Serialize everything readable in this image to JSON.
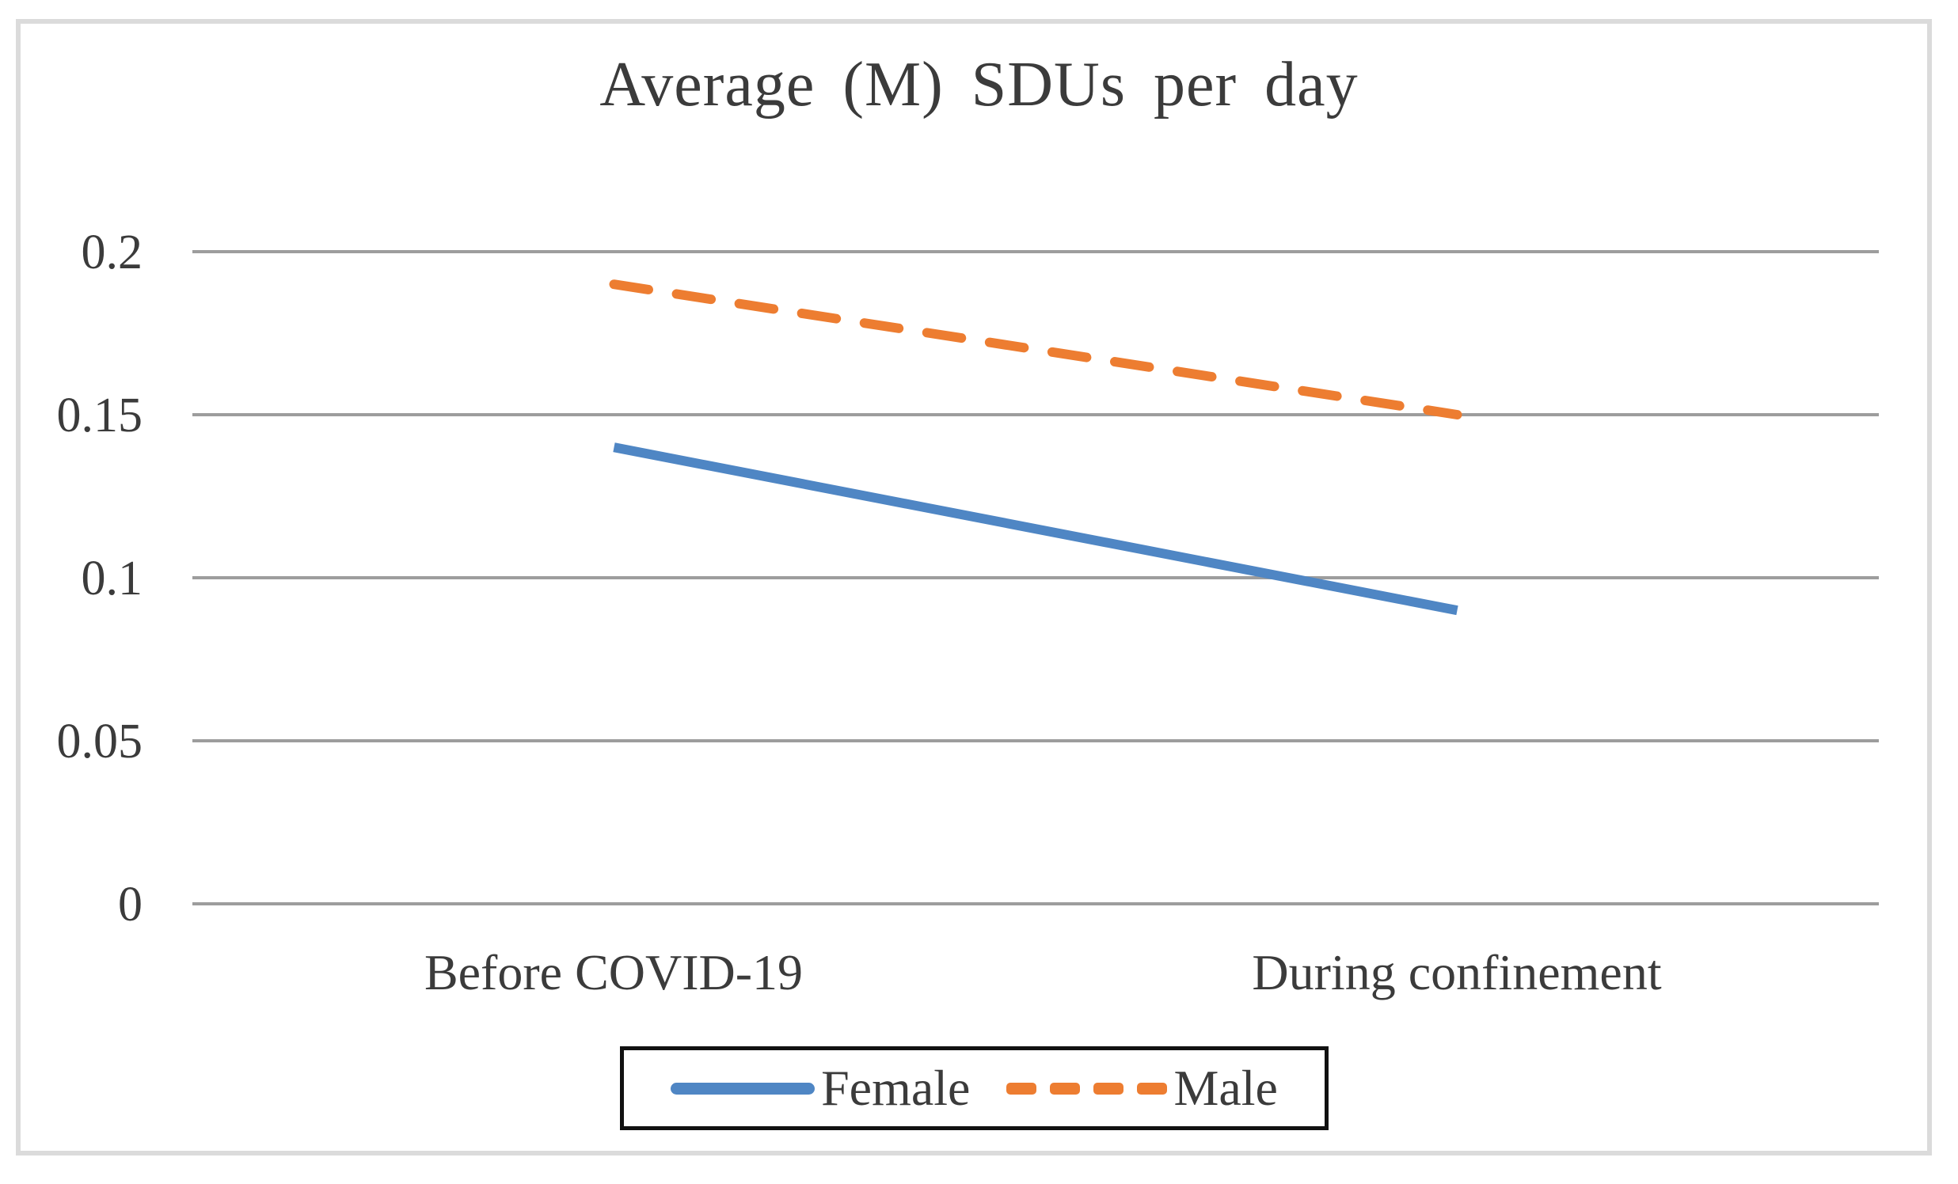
{
  "chart_data": {
    "type": "line",
    "title": "Average (M) SDUs per day",
    "categories": [
      "Before COVID-19",
      "During confinement"
    ],
    "series": [
      {
        "name": "Female",
        "values": [
          0.14,
          0.09
        ],
        "color": "#4f86c4",
        "style": "solid"
      },
      {
        "name": "Male",
        "values": [
          0.19,
          0.15
        ],
        "color": "#ed7d31",
        "style": "dashed"
      }
    ],
    "ylim": [
      0,
      0.2
    ],
    "yticks": [
      0,
      0.05,
      0.1,
      0.15,
      0.2
    ],
    "ytick_labels": [
      "0",
      "0.05",
      "0.1",
      "0.15",
      "0.2"
    ],
    "xlabel": "",
    "ylabel": "",
    "grid": true,
    "gridline_color": "#9d9d9d",
    "legend_position": "bottom",
    "legend_border_color": "#111111",
    "text_color": "#3b3b3b",
    "figure_border_color": "#dbdbdb",
    "background_color": "#ffffff"
  }
}
